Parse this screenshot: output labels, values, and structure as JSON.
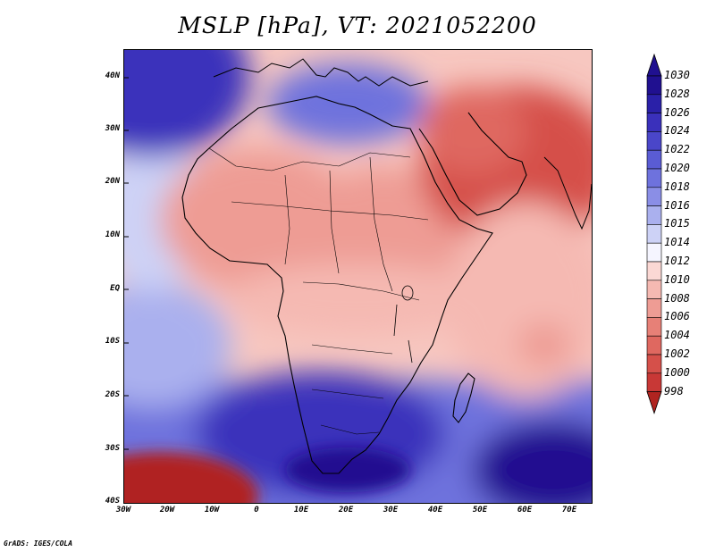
{
  "title": "MSLP [hPa], VT: 2021052200",
  "credit": "GrADS: IGES/COLA",
  "lat_labels": [
    "40N",
    "30N",
    "20N",
    "10N",
    "EQ",
    "10S",
    "20S",
    "30S",
    "40S"
  ],
  "lon_labels": [
    "30W",
    "20W",
    "10W",
    "0",
    "10E",
    "20E",
    "30E",
    "40E",
    "50E",
    "60E",
    "70E"
  ],
  "colorbar": {
    "unit": "hPa",
    "levels": [
      "1030",
      "1028",
      "1026",
      "1024",
      "1022",
      "1020",
      "1018",
      "1016",
      "1015",
      "1014",
      "1012",
      "1010",
      "1008",
      "1006",
      "1004",
      "1002",
      "1000",
      "998"
    ],
    "colors": [
      "#201090",
      "#2a20a8",
      "#3a30bb",
      "#4a46c9",
      "#5a5cd4",
      "#6e72dd",
      "#8a8ee6",
      "#aab0ee",
      "#cdd2f6",
      "#f5f5ff",
      "#fbd8d4",
      "#f5b9b2",
      "#ee9c94",
      "#e78077",
      "#df6860",
      "#d5504a",
      "#c83836",
      "#b02420"
    ]
  }
}
